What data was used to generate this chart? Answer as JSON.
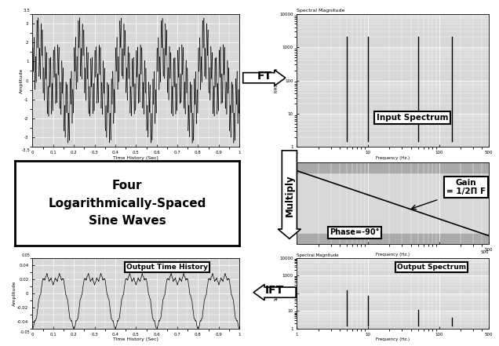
{
  "bg_color": "#ffffff",
  "plot_bg": "#d8d8d8",
  "grid_color": "#ffffff",
  "black": "#000000",
  "input_freqs": [
    5,
    10,
    50,
    150
  ],
  "input_amplitudes": [
    2000,
    2000,
    2000,
    2000
  ],
  "output_freqs": [
    5,
    10,
    50,
    150
  ],
  "output_amplitudes": [
    150,
    70,
    12,
    4
  ],
  "ft_arrow_text": "FT",
  "ift_arrow_text": "IFT",
  "multiply_text": "Multiply",
  "input_spectrum_label": "Input Spectrum",
  "output_spectrum_label": "Output Spectrum",
  "output_time_label": "Output Time History",
  "four_sine_label": "Four\nLogarithmically-Spaced\nSine Waves",
  "gain_annotation": "Gain\n= 1/2Π F",
  "phase_annotation": "Phase=-90°",
  "spectral_magnitude_title": "Spectral Magnitude",
  "rms_ylabel": "RMS Spectra",
  "freq_xlabel": "Frequency (Hz.)",
  "amplitude_ylabel": "Amplitude",
  "time_xlabel": "Time History (Sec)"
}
